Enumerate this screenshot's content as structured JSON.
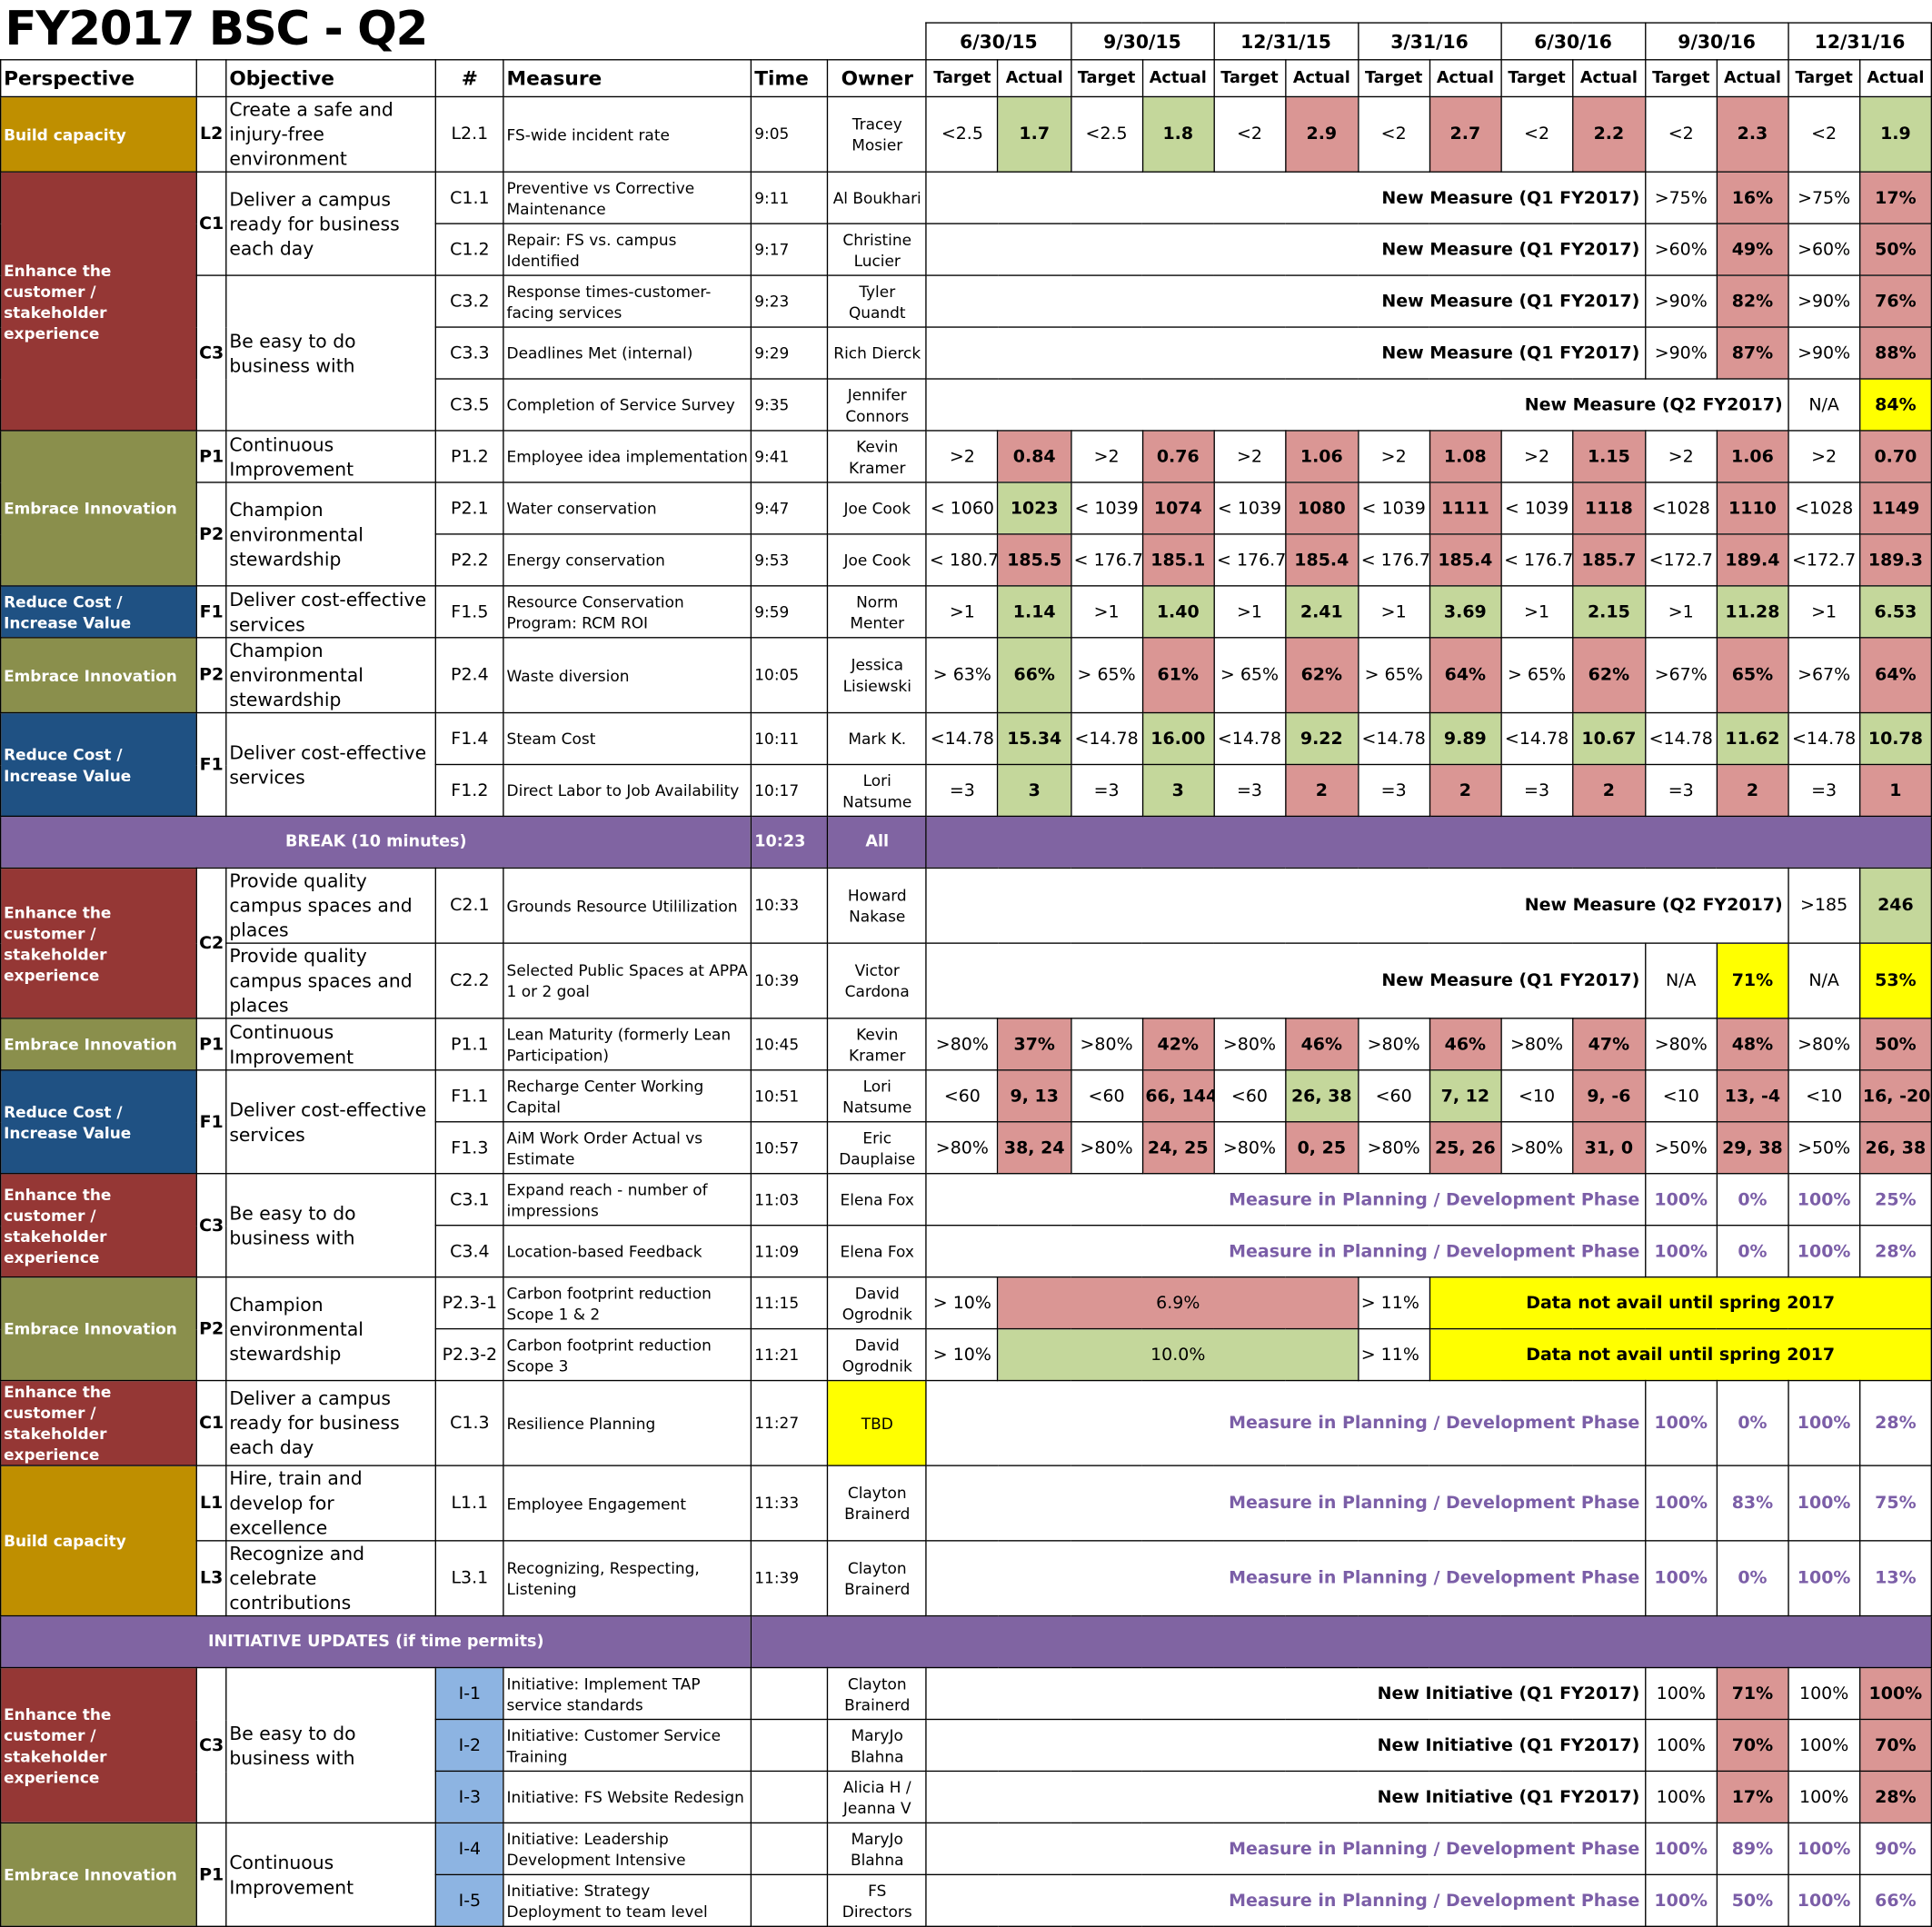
{
  "title": "FY2017 BSC - Q2",
  "headers": {
    "perspective": "Perspective",
    "objective": "Objective",
    "num": "#",
    "measure": "Measure",
    "time": "Time",
    "owner": "Owner",
    "target": "Target",
    "actual": "Actual"
  },
  "dates": [
    "6/30/15",
    "9/30/15",
    "12/31/15",
    "3/31/16",
    "6/30/16",
    "9/30/16",
    "12/31/16"
  ],
  "perspectives": {
    "cap": "Build capacity",
    "cust": "Enhance the customer / stakeholder experience",
    "inn": "Embrace Innovation",
    "cost": "Reduce Cost / Increase Value"
  },
  "codes": {
    "L2": "L2",
    "C1": "C1",
    "C3": "C3",
    "P1": "P1",
    "P2": "P2",
    "F1": "F1",
    "C2": "C2",
    "L1": "L1",
    "L3": "L3"
  },
  "objectives": {
    "safe": "Create a safe and injury-free environment",
    "ready": "Deliver a campus ready for business each day",
    "easy": "Be easy to do business with",
    "ci": "Continuous Improvement",
    "champ": "Champion environmental stewardship",
    "cost": "Deliver cost-effective services",
    "quality": "Provide quality campus spaces and places",
    "hire": "Hire, train and develop for excellence",
    "recog": "Recognize and celebrate contributions"
  },
  "labels": {
    "nm_q1": "New Measure (Q1 FY2017)",
    "nm_q2": "New Measure (Q2 FY2017)",
    "mp": "Measure in Planning / Development Phase",
    "ni_q1": "New Initiative (Q1 FY2017)",
    "dna": "Data not avail until spring 2017",
    "break": "BREAK (10 minutes)",
    "break_time": "10:23",
    "break_owner": "All",
    "initiative": "INITIATIVE UPDATES (if time permits)"
  },
  "rows": {
    "r2": {
      "num": "L2.1",
      "measure": "FS-wide incident rate",
      "time": "9:05",
      "owner": "Tracey Mosier",
      "vals": [
        "<2.5",
        "1.7",
        "<2.5",
        "1.8",
        "<2",
        "2.9",
        "<2",
        "2.7",
        "<2",
        "2.2",
        "<2",
        "2.3",
        "<2",
        "1.9"
      ]
    },
    "r3": {
      "num": "C1.1",
      "measure": "Preventive vs Corrective Maintenance",
      "time": "9:11",
      "owner": "Al Boukhari",
      "vals": [
        ">75%",
        "16%",
        ">75%",
        "17%"
      ]
    },
    "r4": {
      "num": "C1.2",
      "measure": "Repair: FS vs. campus Identified",
      "time": "9:17",
      "owner": "Christine Lucier",
      "vals": [
        ">60%",
        "49%",
        ">60%",
        "50%"
      ]
    },
    "r5": {
      "num": "C3.2",
      "measure": "Response times-customer-facing services",
      "time": "9:23",
      "owner": "Tyler Quandt",
      "vals": [
        ">90%",
        "82%",
        ">90%",
        "76%"
      ]
    },
    "r6": {
      "num": "C3.3",
      "measure": "Deadlines Met (internal)",
      "time": "9:29",
      "owner": "Rich Dierck",
      "vals": [
        ">90%",
        "87%",
        ">90%",
        "88%"
      ]
    },
    "r7": {
      "num": "C3.5",
      "measure": "Completion of Service Survey",
      "time": "9:35",
      "owner": "Jennifer Connors",
      "vals": [
        "N/A",
        "84%"
      ]
    },
    "r8": {
      "num": "P1.2",
      "measure": "Employee idea implementation",
      "time": "9:41",
      "owner": "Kevin Kramer",
      "vals": [
        ">2",
        "0.84",
        ">2",
        "0.76",
        ">2",
        "1.06",
        ">2",
        "1.08",
        ">2",
        "1.15",
        ">2",
        "1.06",
        ">2",
        "0.70"
      ]
    },
    "r9": {
      "num": "P2.1",
      "measure": "Water conservation",
      "time": "9:47",
      "owner": "Joe Cook",
      "vals": [
        "< 1060",
        "1023",
        "< 1039",
        "1074",
        "< 1039",
        "1080",
        "< 1039",
        "1111",
        "< 1039",
        "1118",
        "<1028",
        "1110",
        "<1028",
        "1149"
      ]
    },
    "r10": {
      "num": "P2.2",
      "measure": "Energy conservation",
      "time": "9:53",
      "owner": "Joe Cook",
      "vals": [
        "< 180.7",
        "185.5",
        "< 176.7",
        "185.1",
        "< 176.7",
        "185.4",
        "< 176.7",
        "185.4",
        "< 176.7",
        "185.7",
        "<172.7",
        "189.4",
        "<172.7",
        "189.3"
      ]
    },
    "r11": {
      "num": "F1.5",
      "measure": "Resource Conservation Program: RCM ROI",
      "time": "9:59",
      "owner": "Norm Menter",
      "vals": [
        ">1",
        "1.14",
        ">1",
        "1.40",
        ">1",
        "2.41",
        ">1",
        "3.69",
        ">1",
        "2.15",
        ">1",
        "11.28",
        ">1",
        "6.53"
      ]
    },
    "r12": {
      "num": "P2.4",
      "measure": "Waste diversion",
      "time": "10:05",
      "owner": "Jessica Lisiewski",
      "vals": [
        "> 63%",
        "66%",
        "> 65%",
        "61%",
        "> 65%",
        "62%",
        "> 65%",
        "64%",
        "> 65%",
        "62%",
        ">67%",
        "65%",
        ">67%",
        "64%"
      ]
    },
    "r13": {
      "num": "F1.4",
      "measure": "Steam Cost",
      "time": "10:11",
      "owner": "Mark K.",
      "vals": [
        "<14.78",
        "15.34",
        "<14.78",
        "16.00",
        "<14.78",
        "9.22",
        "<14.78",
        "9.89",
        "<14.78",
        "10.67",
        "<14.78",
        "11.62",
        "<14.78",
        "10.78"
      ]
    },
    "r14": {
      "num": "F1.2",
      "measure": "Direct Labor to Job Availability",
      "time": "10:17",
      "owner": "Lori Natsume",
      "vals": [
        "=3",
        "3",
        "=3",
        "3",
        "=3",
        "2",
        "=3",
        "2",
        "=3",
        "2",
        "=3",
        "2",
        "=3",
        "1"
      ]
    },
    "r16": {
      "num": "C2.1",
      "measure": "Grounds Resource Utililization",
      "time": "10:33",
      "owner": "Howard Nakase",
      "vals": [
        ">185",
        "246"
      ]
    },
    "r17": {
      "num": "C2.2",
      "measure": "Selected Public Spaces at APPA 1 or 2 goal",
      "time": "10:39",
      "owner": "Victor Cardona",
      "vals": [
        "N/A",
        "71%",
        "N/A",
        "53%"
      ]
    },
    "r18": {
      "num": "P1.1",
      "measure": "Lean Maturity (formerly Lean Participation)",
      "time": "10:45",
      "owner": "Kevin Kramer",
      "vals": [
        ">80%",
        "37%",
        ">80%",
        "42%",
        ">80%",
        "46%",
        ">80%",
        "46%",
        ">80%",
        "47%",
        ">80%",
        "48%",
        ">80%",
        "50%"
      ]
    },
    "r19": {
      "num": "F1.1",
      "measure": "Recharge Center Working Capital",
      "time": "10:51",
      "owner": "Lori Natsume",
      "vals": [
        "<60",
        "9, 13",
        "<60",
        "66, 144",
        "<60",
        "26, 38",
        "<60",
        "7, 12",
        "<10",
        "9, -6",
        "<10",
        "13, -4",
        "<10",
        "16, -20"
      ]
    },
    "r20": {
      "num": "F1.3",
      "measure": "AiM Work Order Actual vs Estimate",
      "time": "10:57",
      "owner": "Eric Dauplaise",
      "vals": [
        ">80%",
        "38, 24",
        ">80%",
        "24, 25",
        ">80%",
        "0, 25",
        ">80%",
        "25, 26",
        ">80%",
        "31, 0",
        ">50%",
        "29, 38",
        ">50%",
        "26, 38"
      ]
    },
    "r21": {
      "num": "C3.1",
      "measure": "Expand reach - number of impressions",
      "time": "11:03",
      "owner": "Elena Fox",
      "vals": [
        "100%",
        "0%",
        "100%",
        "25%"
      ]
    },
    "r22": {
      "num": "C3.4",
      "measure": "Location-based Feedback",
      "time": "11:09",
      "owner": "Elena Fox",
      "vals": [
        "100%",
        "0%",
        "100%",
        "28%"
      ]
    },
    "r23": {
      "num": "P2.3-1",
      "measure": "Carbon footprint reduction Scope 1 & 2",
      "time": "11:15",
      "owner": "David Ogrodnik",
      "vals": [
        "> 10%",
        "6.9%",
        "> 11%"
      ]
    },
    "r24": {
      "num": "P2.3-2",
      "measure": "Carbon footprint reduction Scope 3",
      "time": "11:21",
      "owner": "David Ogrodnik",
      "vals": [
        "> 10%",
        "10.0%",
        "> 11%"
      ]
    },
    "r25": {
      "num": "C1.3",
      "measure": "Resilience Planning",
      "time": "11:27",
      "owner": "TBD",
      "vals": [
        "100%",
        "0%",
        "100%",
        "28%"
      ]
    },
    "r26": {
      "num": "L1.1",
      "measure": "Employee Engagement",
      "time": "11:33",
      "owner": "Clayton Brainerd",
      "vals": [
        "100%",
        "83%",
        "100%",
        "75%"
      ]
    },
    "r27": {
      "num": "L3.1",
      "measure": "Recognizing, Respecting, Listening",
      "time": "11:39",
      "owner": "Clayton Brainerd",
      "vals": [
        "100%",
        "0%",
        "100%",
        "13%"
      ]
    },
    "r29": {
      "num": "I-1",
      "measure": "Initiative: Implement TAP service standards",
      "time": "",
      "owner": "Clayton Brainerd",
      "vals": [
        "100%",
        "71%",
        "100%",
        "100%"
      ]
    },
    "r30": {
      "num": "I-2",
      "measure": "Initiative: Customer Service Training",
      "time": "",
      "owner": "MaryJo Blahna",
      "vals": [
        "100%",
        "70%",
        "100%",
        "70%"
      ]
    },
    "r31": {
      "num": "I-3",
      "measure": "Initiative: FS Website Redesign",
      "time": "",
      "owner": "Alicia H / Jeanna V",
      "vals": [
        "100%",
        "17%",
        "100%",
        "28%"
      ]
    },
    "r32": {
      "num": "I-4",
      "measure": "Initiative: Leadership Development Intensive",
      "time": "",
      "owner": "MaryJo Blahna",
      "vals": [
        "100%",
        "89%",
        "100%",
        "90%"
      ]
    },
    "r33": {
      "num": "I-5",
      "measure": "Initiative: Strategy Deployment to team level",
      "time": "",
      "owner": "FS Directors",
      "vals": [
        "100%",
        "50%",
        "100%",
        "66%"
      ]
    }
  },
  "colors": {
    "green": "#c4d79b",
    "red": "#da9694",
    "yellow": "#ffff00",
    "purple": "#8064a2",
    "build_capacity": "#bf8f00",
    "customer": "#953735",
    "innovation": "#8a8f4c",
    "cost": "#1f5183"
  }
}
